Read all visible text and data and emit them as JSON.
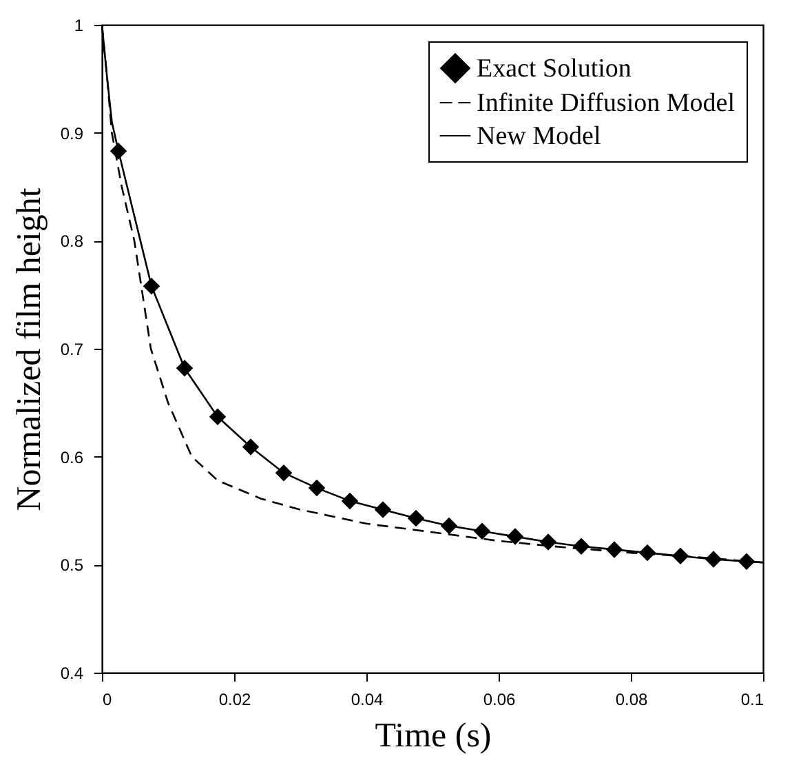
{
  "chart_data": {
    "type": "line",
    "xlabel": "Time (s)",
    "ylabel": "Normalized film height",
    "xlim": [
      0,
      0.1
    ],
    "xticks": [
      0,
      0.02,
      0.04,
      0.06,
      0.08,
      0.1
    ],
    "ylim": [
      0.4,
      1
    ],
    "yticks": [
      0.4,
      0.5,
      0.6,
      0.7,
      0.8,
      0.9,
      1
    ],
    "legend": "top right",
    "grid": false,
    "series": [
      {
        "name": "Exact Solution",
        "type": "scatter",
        "marker": "diamond",
        "color": "#000000",
        "x": [
          0.0025,
          0.0075,
          0.0125,
          0.0175,
          0.0225,
          0.0275,
          0.0325,
          0.0375,
          0.0425,
          0.0475,
          0.0525,
          0.0575,
          0.0625,
          0.0675,
          0.0725,
          0.0775,
          0.0825,
          0.0875,
          0.0925,
          0.0975
        ],
        "values": [
          0.883,
          0.758,
          0.682,
          0.637,
          0.609,
          0.585,
          0.571,
          0.559,
          0.551,
          0.543,
          0.536,
          0.531,
          0.526,
          0.521,
          0.517,
          0.514,
          0.511,
          0.508,
          0.505,
          0.503
        ]
      },
      {
        "name": "Infinite Diffusion Model",
        "line_style": "dashed",
        "color": "#000000",
        "x": [
          0,
          0.0008,
          0.0015,
          0.003,
          0.0049,
          0.0074,
          0.01,
          0.0136,
          0.0175,
          0.0241,
          0.03,
          0.04,
          0.05,
          0.06,
          0.07,
          0.08,
          0.09,
          0.1
        ],
        "values": [
          1,
          0.95,
          0.9,
          0.85,
          0.8,
          0.7,
          0.65,
          0.6,
          0.578,
          0.561,
          0.551,
          0.538,
          0.53,
          0.522,
          0.516,
          0.511,
          0.507,
          0.502
        ]
      },
      {
        "name": "New Model",
        "line_style": "solid",
        "color": "#000000",
        "x": [
          0,
          0.0008,
          0.0015,
          0.0025,
          0.0075,
          0.0125,
          0.0175,
          0.0225,
          0.0275,
          0.0325,
          0.0375,
          0.0425,
          0.0475,
          0.0525,
          0.0575,
          0.0625,
          0.0675,
          0.0725,
          0.0775,
          0.0825,
          0.0875,
          0.0925,
          0.0975,
          0.1
        ],
        "values": [
          1,
          0.95,
          0.91,
          0.883,
          0.758,
          0.682,
          0.637,
          0.609,
          0.585,
          0.571,
          0.559,
          0.551,
          0.543,
          0.536,
          0.531,
          0.526,
          0.521,
          0.517,
          0.514,
          0.511,
          0.508,
          0.505,
          0.503,
          0.502
        ]
      }
    ]
  }
}
